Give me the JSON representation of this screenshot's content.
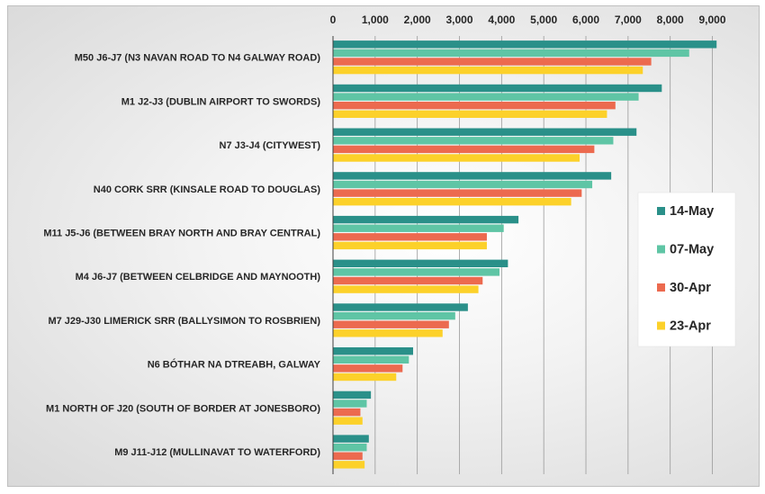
{
  "chart_data": {
    "type": "bar",
    "orientation": "horizontal",
    "title": "",
    "xlabel": "",
    "ylabel": "",
    "xlim": [
      0,
      9800
    ],
    "x_ticks": [
      0,
      1000,
      2000,
      3000,
      4000,
      5000,
      6000,
      7000,
      8000,
      9000
    ],
    "x_tick_labels": [
      "0",
      "1,000",
      "2,000",
      "3,000",
      "4,000",
      "5,000",
      "6,000",
      "7,000",
      "8,000",
      "9,000"
    ],
    "x_axis_position": "top",
    "grid": true,
    "legend_position": "right",
    "categories": [
      "M50 J6-J7 (N3 NAVAN ROAD TO N4 GALWAY ROAD)",
      "M1 J2-J3 (DUBLIN AIRPORT TO SWORDS)",
      "N7 J3-J4 (CITYWEST)",
      "N40 CORK SRR (KINSALE ROAD TO DOUGLAS)",
      "M11 J5-J6 (BETWEEN BRAY NORTH AND BRAY CENTRAL)",
      "M4 J6-J7 (BETWEEN CELBRIDGE AND MAYNOOTH)",
      "M7 J29-J30 LIMERICK SRR (BALLYSIMON TO ROSBRIEN)",
      "N6 BÓTHAR NA DTREABH, GALWAY",
      "M1 NORTH OF J20 (SOUTH OF BORDER AT JONESBORO)",
      "M9 J11-J12 (MULLINAVAT TO WATERFORD)"
    ],
    "series": [
      {
        "name": "14-May",
        "color": "#2a9089",
        "values": [
          9100,
          7800,
          7200,
          6600,
          4400,
          4150,
          3200,
          1900,
          900,
          850
        ]
      },
      {
        "name": "07-May",
        "color": "#5fc5a5",
        "values": [
          8450,
          7250,
          6650,
          6150,
          4050,
          3950,
          2900,
          1800,
          800,
          800
        ]
      },
      {
        "name": "30-Apr",
        "color": "#ec6a4f",
        "values": [
          7550,
          6700,
          6200,
          5900,
          3650,
          3550,
          2750,
          1650,
          650,
          700
        ]
      },
      {
        "name": "23-Apr",
        "color": "#fcd12a",
        "values": [
          7350,
          6500,
          5850,
          5650,
          3650,
          3450,
          2600,
          1500,
          700,
          750
        ]
      }
    ]
  }
}
